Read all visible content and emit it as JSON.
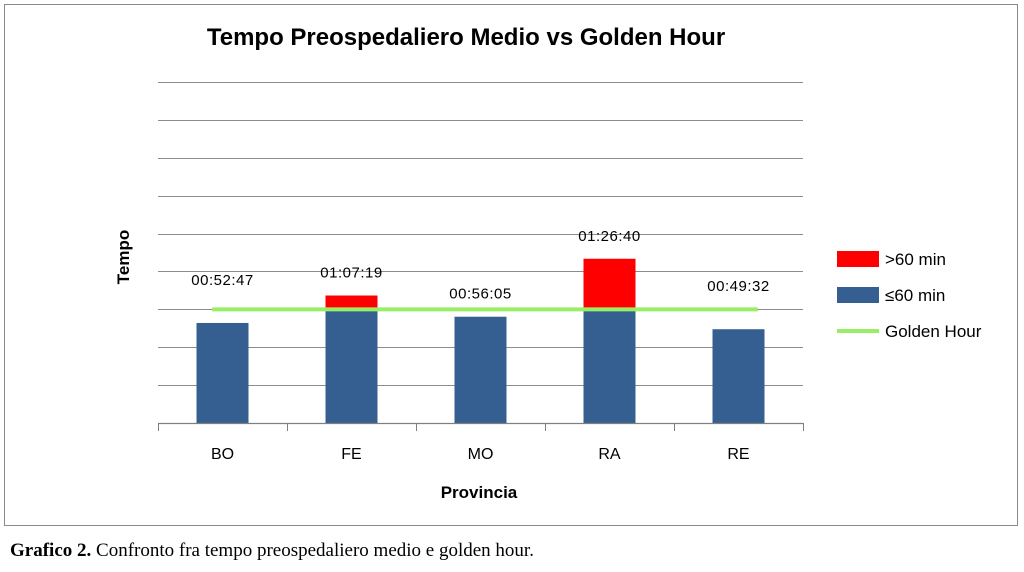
{
  "caption": {
    "label": "Grafico 2.",
    "text": " Confronto fra tempo preospedaliero medio e golden hour."
  },
  "colors": {
    "over": "#ff0000",
    "under": "#365f91",
    "golden": "#99ee66",
    "grid": "#8c8c8c"
  },
  "chart_data": {
    "type": "bar",
    "stacked": true,
    "title": "Tempo Preospedaliero Medio vs Golden Hour",
    "xlabel": "Provincia",
    "ylabel": "Tempo",
    "y_unit": "minutes",
    "ylim": [
      0,
      180
    ],
    "y_tick_labels_shown": false,
    "grid": true,
    "legend_position": "right",
    "categories": [
      "BO",
      "FE",
      "MO",
      "RA",
      "RE"
    ],
    "series": [
      {
        "name": "≤60 min",
        "color": "#365f91",
        "values": [
          52.8,
          60,
          56.1,
          60,
          49.5
        ]
      },
      {
        "name": ">60 min",
        "color": "#ff0000",
        "values": [
          0,
          7.3,
          0,
          26.7,
          0
        ]
      }
    ],
    "data_labels": [
      "00:52:47",
      "01:07:19",
      "00:56:05",
      "01:26:40",
      "00:49:32"
    ],
    "reference_line": {
      "name": "Golden Hour",
      "value": 60,
      "color": "#99ee66"
    },
    "legend": [
      {
        "label": ">60 min",
        "type": "box",
        "color": "#ff0000"
      },
      {
        "label": "≤60 min",
        "type": "box",
        "color": "#365f91"
      },
      {
        "label": "Golden Hour",
        "type": "line",
        "color": "#99ee66"
      }
    ]
  }
}
